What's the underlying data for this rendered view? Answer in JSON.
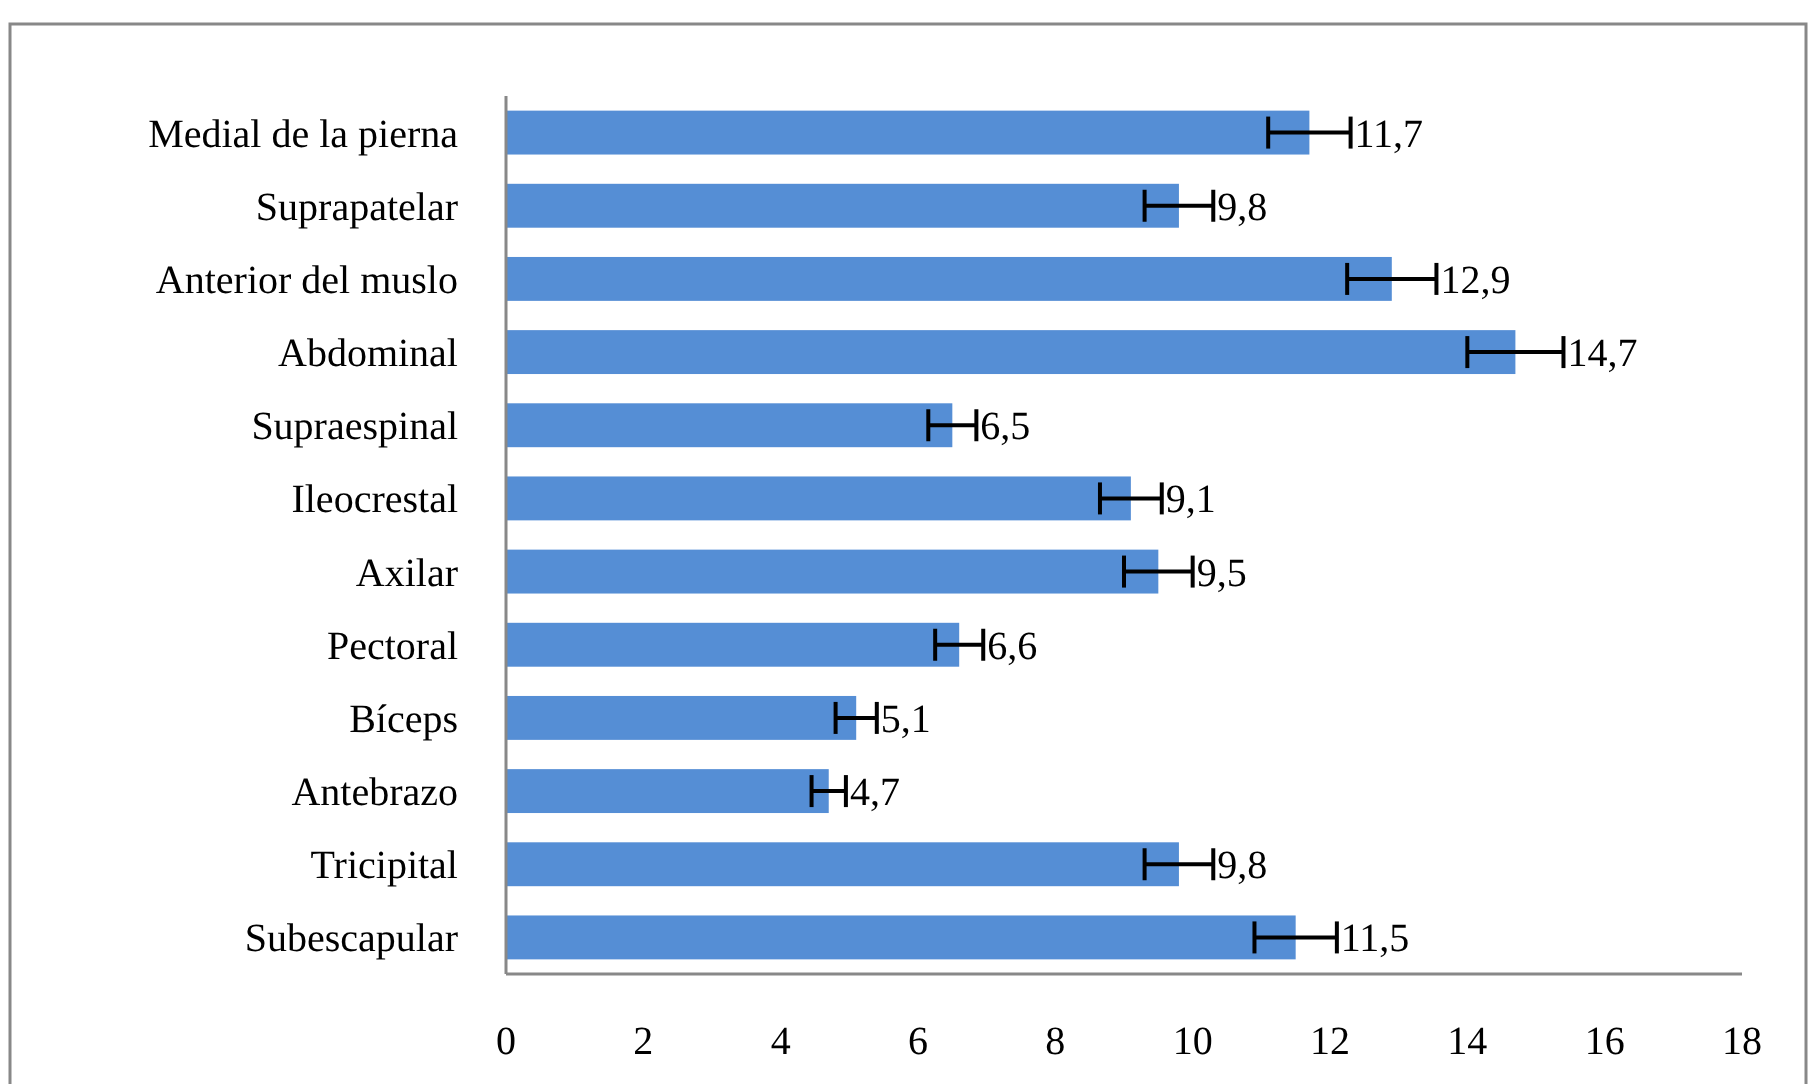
{
  "chart_data": {
    "type": "bar",
    "orientation": "horizontal",
    "categories": [
      "Medial de la pierna",
      "Suprapatelar",
      "Anterior del muslo",
      "Abdominal",
      "Supraespinal",
      "Ileocrestal",
      "Axilar",
      "Pectoral",
      "Bíceps",
      "Antebrazo",
      "Tricipital",
      "Subescapular"
    ],
    "values": [
      11.7,
      9.8,
      12.9,
      14.7,
      6.5,
      9.1,
      9.5,
      6.6,
      5.1,
      4.7,
      9.8,
      11.5
    ],
    "errors": [
      0.6,
      0.5,
      0.65,
      0.7,
      0.35,
      0.45,
      0.5,
      0.35,
      0.3,
      0.25,
      0.5,
      0.6
    ],
    "value_labels": [
      "11,7",
      "9,8",
      "12,9",
      "14,7",
      "6,5",
      "9,1",
      "9,5",
      "6,6",
      "5,1",
      "4,7",
      "9,8",
      "11,5"
    ],
    "color": "#558ed5",
    "xlim": [
      0,
      18
    ],
    "xticks": [
      0,
      2,
      4,
      6,
      8,
      10,
      12,
      14,
      16,
      18
    ],
    "grid": false
  }
}
